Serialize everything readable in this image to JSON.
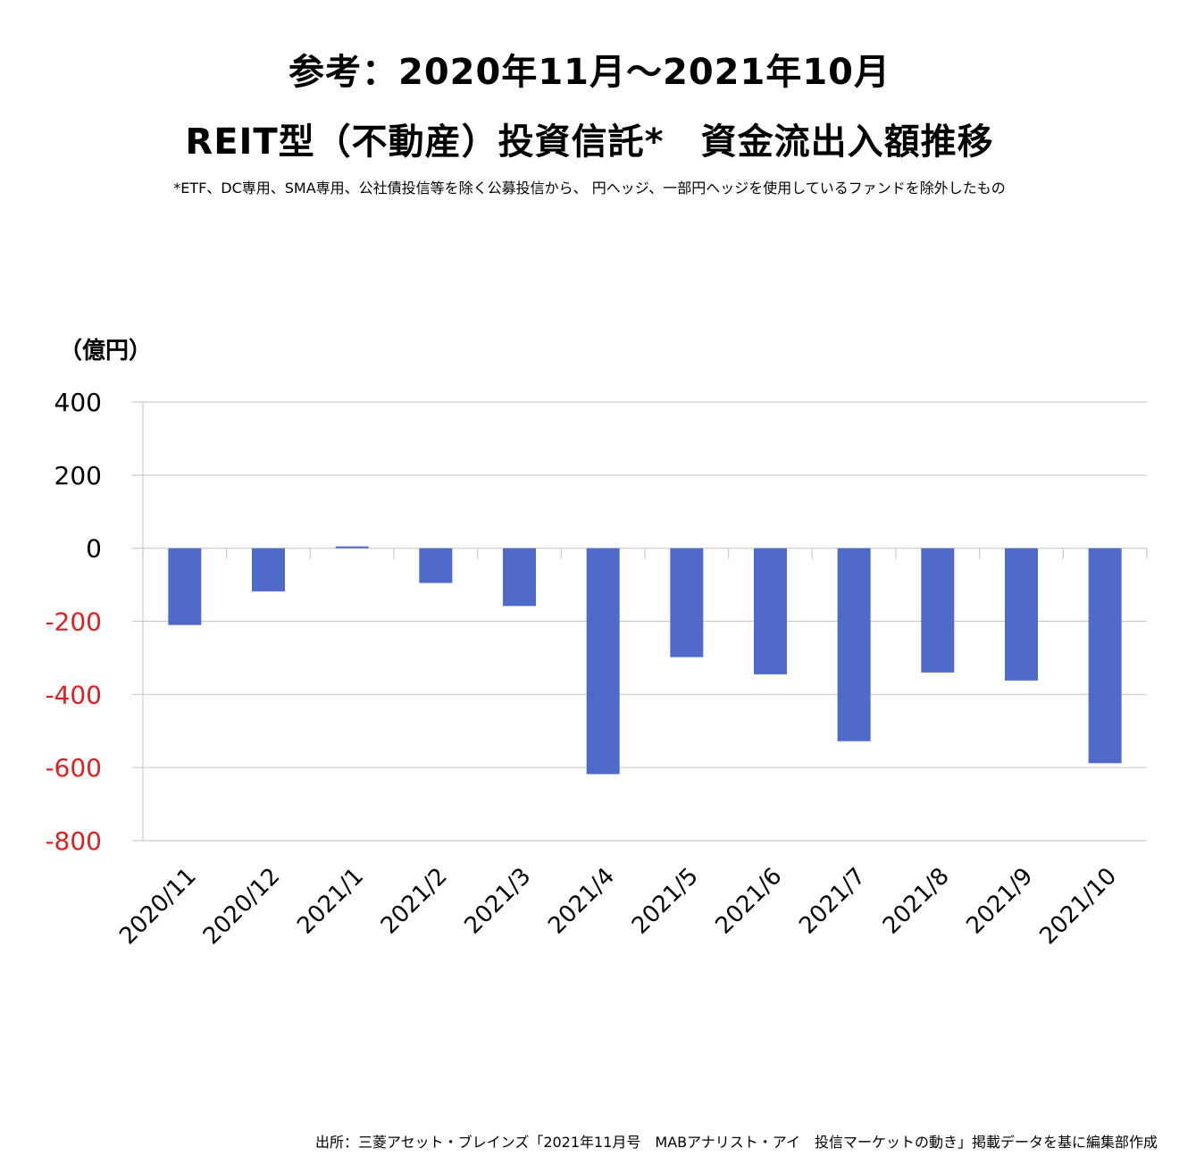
{
  "header": {
    "title_line1": "参考：2020年11月〜2021年10月",
    "title_line2": "REIT型（不動産）投資信託*　資金流出入額推移",
    "note": "*ETF、DC専用、SMA専用、公社債投信等を除く公募投信から、 円ヘッジ、一部円ヘッジを使用しているファンドを除外したもの"
  },
  "footer": {
    "source": "出所：三菱アセット・ブレインズ「2021年11月号　MABアナリスト・アイ　投信マーケットの動き」掲載データを基に編集部作成"
  },
  "chart_data": {
    "type": "bar",
    "title": "REIT型（不動産）投資信託*　資金流出入額推移",
    "ylabel": "（億円）",
    "xlabel": "",
    "categories": [
      "2020/11",
      "2020/12",
      "2021/1",
      "2021/2",
      "2021/3",
      "2021/4",
      "2021/5",
      "2021/6",
      "2021/7",
      "2021/8",
      "2021/9",
      "2021/10"
    ],
    "values": [
      -210,
      -118,
      5,
      -95,
      -158,
      -618,
      -298,
      -345,
      -528,
      -340,
      -362,
      -588
    ],
    "ylim": [
      -800,
      400
    ],
    "yticks": [
      "400",
      "200",
      "0",
      "-200",
      "-400",
      "-600",
      "-800"
    ],
    "grid": true,
    "legend": "none",
    "colors": {
      "bar": "#4f6ac8",
      "negative_tick": "#e02020",
      "positive_tick": "#000000",
      "grid": "#cccccc"
    }
  }
}
